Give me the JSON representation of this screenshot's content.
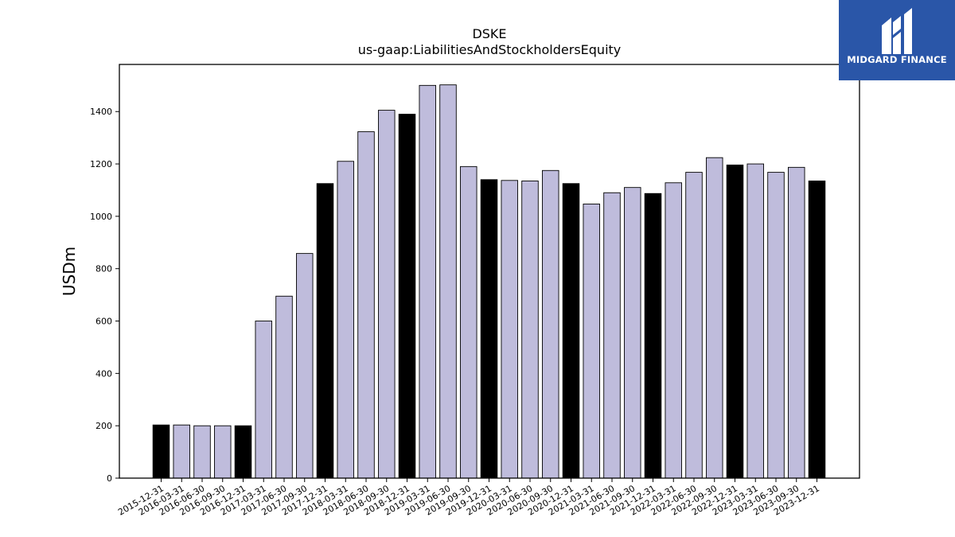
{
  "logo": {
    "text": "MIDGARD FINANCE"
  },
  "chart_data": {
    "type": "bar",
    "title": "DSKE",
    "subtitle": "us-gaap:LiabilitiesAndStockholdersEquity",
    "ylabel": "USDm",
    "xlabel": "",
    "ylim": [
      0,
      1580
    ],
    "yticks": [
      0,
      200,
      400,
      600,
      800,
      1000,
      1200,
      1400
    ],
    "grid": false,
    "colors": {
      "annual": "#000000",
      "quarterly": "#bfbcdc",
      "edge": "#000000"
    },
    "categories": [
      "2015-12-31",
      "2016-03-31",
      "2016-06-30",
      "2016-09-30",
      "2016-12-31",
      "2017-03-31",
      "2017-06-30",
      "2017-09-30",
      "2017-12-31",
      "2018-03-31",
      "2018-06-30",
      "2018-09-30",
      "2018-12-31",
      "2019-03-31",
      "2019-06-30",
      "2019-09-30",
      "2019-12-31",
      "2020-03-31",
      "2020-06-30",
      "2020-09-30",
      "2020-12-31",
      "2021-03-31",
      "2021-06-30",
      "2021-09-30",
      "2021-12-31",
      "2022-03-31",
      "2022-06-30",
      "2022-09-30",
      "2022-12-31",
      "2023-03-31",
      "2023-06-30",
      "2023-09-30",
      "2023-12-31"
    ],
    "values": [
      203,
      203,
      200,
      200,
      200,
      600,
      695,
      858,
      1125,
      1210,
      1323,
      1405,
      1390,
      1500,
      1502,
      1190,
      1140,
      1137,
      1135,
      1175,
      1125,
      1047,
      1090,
      1110,
      1087,
      1128,
      1168,
      1224,
      1196,
      1200,
      1168,
      1187,
      1135
    ]
  }
}
